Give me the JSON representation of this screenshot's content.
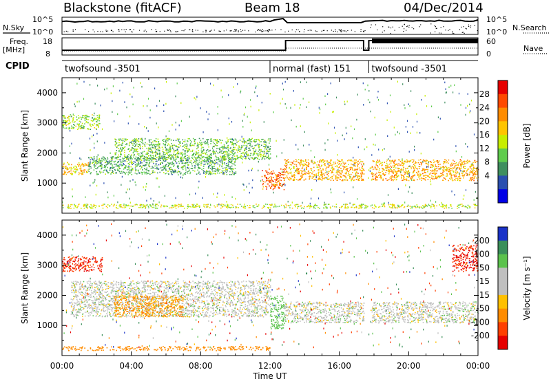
{
  "header": {
    "station": "Blackstone (fitACF)",
    "beam": "Beam 18",
    "date": "04/Dec/2014"
  },
  "top_panels": {
    "nsky_label": "N.Sky",
    "nsearch_label": "N.Search",
    "nsky_ticks": [
      "10^5",
      "10^0"
    ],
    "freq_label_1": "Freq.",
    "freq_label_2": "[MHz]",
    "freq_ticks": [
      "18",
      "8"
    ],
    "nave_label": "Nave",
    "nave_ticks": [
      "60",
      "0"
    ],
    "cpid_label": "CPID"
  },
  "cpid_segments": [
    {
      "label": "twofsound -3501",
      "start_h": 0.0
    },
    {
      "label": "normal (fast) 151",
      "start_h": 12.0
    },
    {
      "label": "twofsound -3501",
      "start_h": 17.7
    }
  ],
  "colorbars": {
    "power": {
      "label": "Power [dB]",
      "ticks": [
        "28",
        "24",
        "20",
        "16",
        "12",
        "8",
        "4"
      ],
      "colors": [
        "#e60000",
        "#ff4a00",
        "#ff8c00",
        "#ffc400",
        "#c7ee00",
        "#5fcc4d",
        "#3f8f5f",
        "#2a4fb0",
        "#0000e6"
      ]
    },
    "velocity": {
      "label": "Velocity [m s⁻¹]",
      "ticks": [
        "200",
        "100",
        "50",
        "15",
        "-15",
        "-50",
        "-100",
        "-200"
      ],
      "colors": [
        "#1a32c8",
        "#3a8f5a",
        "#5bc24c",
        "#bfbfbf",
        "#bfbfbf",
        "#ffc000",
        "#ff8c00",
        "#ff4000",
        "#e60000"
      ]
    }
  },
  "chart_data": [
    {
      "type": "heatmap",
      "title": "",
      "xlabel": "Time UT",
      "ylabel": "Slant Range [km]",
      "quantity": "Power",
      "unit": "dB",
      "xlim": [
        0,
        24
      ],
      "ylim": [
        0,
        4500
      ],
      "x_ticks": [
        "00:00",
        "04:00",
        "08:00",
        "12:00",
        "16:00",
        "20:00",
        "00:00"
      ],
      "y_ticks": [
        "1000",
        "2000",
        "3000",
        "4000"
      ],
      "scatter_bands": [
        {
          "t": [
            0.0,
            2.2
          ],
          "range": [
            2800,
            3300
          ],
          "value": 14
        },
        {
          "t": [
            0.0,
            1.5
          ],
          "range": [
            1300,
            1700
          ],
          "value": 20
        },
        {
          "t": [
            1.5,
            10.0
          ],
          "range": [
            1300,
            1900
          ],
          "value": 10
        },
        {
          "t": [
            3.0,
            12.0
          ],
          "range": [
            1800,
            2500
          ],
          "value": 12
        },
        {
          "t": [
            11.5,
            12.8
          ],
          "range": [
            800,
            1500
          ],
          "value": 26
        },
        {
          "t": [
            12.8,
            17.4
          ],
          "range": [
            1100,
            1800
          ],
          "value": 22
        },
        {
          "t": [
            17.8,
            24.0
          ],
          "range": [
            1100,
            1800
          ],
          "value": 22
        },
        {
          "t": [
            0.0,
            24.0
          ],
          "range": [
            180,
            320
          ],
          "value": 16
        }
      ]
    },
    {
      "type": "heatmap",
      "title": "",
      "xlabel": "Time UT",
      "ylabel": "Slant Range [km]",
      "quantity": "Velocity",
      "unit": "m s^-1",
      "xlim": [
        0,
        24
      ],
      "ylim": [
        0,
        4500
      ],
      "x_ticks": [
        "00:00",
        "04:00",
        "08:00",
        "12:00",
        "16:00",
        "20:00",
        "00:00"
      ],
      "y_ticks": [
        "1000",
        "2000",
        "3000",
        "4000"
      ],
      "scatter_bands": [
        {
          "t": [
            0.0,
            2.3
          ],
          "range": [
            2800,
            3300
          ],
          "value": -200
        },
        {
          "t": [
            0.5,
            12.0
          ],
          "range": [
            1300,
            2500
          ],
          "value": 0
        },
        {
          "t": [
            3.0,
            7.0
          ],
          "range": [
            1300,
            2000
          ],
          "value": -60
        },
        {
          "t": [
            12.0,
            12.8
          ],
          "range": [
            900,
            2000
          ],
          "value": 40
        },
        {
          "t": [
            12.8,
            17.4
          ],
          "range": [
            1100,
            1800
          ],
          "value": 0
        },
        {
          "t": [
            17.8,
            24.0
          ],
          "range": [
            1100,
            1800
          ],
          "value": 0
        },
        {
          "t": [
            22.5,
            24.0
          ],
          "range": [
            2800,
            3700
          ],
          "value": -200
        },
        {
          "t": [
            0.0,
            12.0
          ],
          "range": [
            180,
            320
          ],
          "value": -70
        }
      ]
    }
  ]
}
